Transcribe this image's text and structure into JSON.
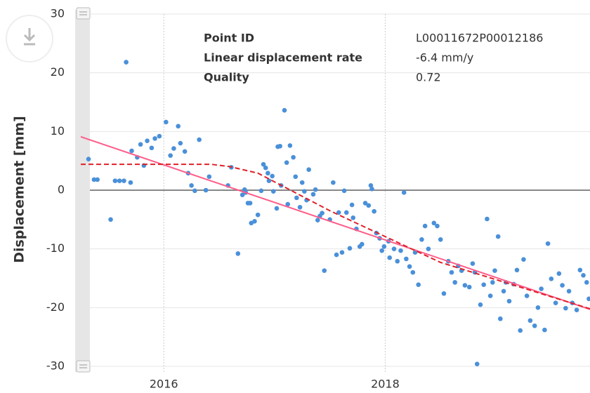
{
  "chart_data": {
    "type": "scatter",
    "ylabel": "Displacement [mm]",
    "xlim": [
      2015.25,
      2019.85
    ],
    "xticks": [
      2016,
      2018
    ],
    "ylim": [
      -30,
      30
    ],
    "yticks": [
      -30,
      -20,
      -10,
      0,
      10,
      20,
      30
    ],
    "grid": true,
    "info": [
      {
        "label": "Point ID",
        "value": "L00011672P00012186"
      },
      {
        "label": "Linear displacement rate",
        "value": "-6.4 mm/y"
      },
      {
        "label": "Quality",
        "value": "0.72"
      }
    ],
    "series": [
      {
        "style": "points",
        "color": "#4a90d9",
        "x": [
          2015.32,
          2015.37,
          2015.4,
          2015.52,
          2015.56,
          2015.6,
          2015.64,
          2015.66,
          2015.7,
          2015.71,
          2015.76,
          2015.79,
          2015.82,
          2015.85,
          2015.89,
          2015.92,
          2015.96,
          2016.02,
          2016.06,
          2016.09,
          2016.13,
          2016.15,
          2016.19,
          2016.22,
          2016.25,
          2016.28,
          2016.32,
          2016.38,
          2016.41,
          2016.58,
          2016.61,
          2016.67,
          2016.71,
          2016.73,
          2016.74,
          2016.76,
          2016.78,
          2016.79,
          2016.82,
          2016.85,
          2016.88,
          2016.9,
          2016.92,
          2016.94,
          2016.95,
          2016.98,
          2016.99,
          2017.02,
          2017.03,
          2017.05,
          2017.06,
          2017.09,
          2017.11,
          2017.12,
          2017.14,
          2017.17,
          2017.19,
          2017.2,
          2017.23,
          2017.25,
          2017.27,
          2017.29,
          2017.31,
          2017.35,
          2017.37,
          2017.39,
          2017.41,
          2017.43,
          2017.45,
          2017.5,
          2017.53,
          2017.56,
          2017.58,
          2017.61,
          2017.63,
          2017.65,
          2017.68,
          2017.7,
          2017.71,
          2017.74,
          2017.77,
          2017.79,
          2017.82,
          2017.85,
          2017.87,
          2017.88,
          2017.9,
          2017.92,
          2017.95,
          2017.97,
          2017.99,
          2018.03,
          2018.04,
          2018.08,
          2018.11,
          2018.14,
          2018.17,
          2018.19,
          2018.22,
          2018.25,
          2018.27,
          2018.3,
          2018.33,
          2018.36,
          2018.39,
          2018.44,
          2018.47,
          2018.5,
          2018.53,
          2018.57,
          2018.6,
          2018.63,
          2018.66,
          2018.69,
          2018.72,
          2018.76,
          2018.79,
          2018.81,
          2018.83,
          2018.86,
          2018.89,
          2018.92,
          2018.95,
          2018.97,
          2018.99,
          2019.02,
          2019.04,
          2019.07,
          2019.09,
          2019.12,
          2019.16,
          2019.19,
          2019.22,
          2019.25,
          2019.28,
          2019.31,
          2019.35,
          2019.38,
          2019.41,
          2019.44,
          2019.47,
          2019.5,
          2019.54,
          2019.57,
          2019.6,
          2019.63,
          2019.66,
          2019.69,
          2019.73,
          2019.76,
          2019.79,
          2019.82,
          2019.84
        ],
        "values": [
          5.3,
          1.8,
          1.8,
          -5.0,
          1.6,
          1.6,
          1.6,
          21.8,
          1.3,
          6.7,
          5.6,
          7.8,
          4.2,
          8.4,
          7.2,
          8.8,
          9.2,
          11.6,
          5.9,
          7.1,
          10.9,
          8.0,
          6.6,
          2.9,
          0.8,
          -0.1,
          8.6,
          0,
          2.3,
          0.8,
          3.9,
          -10.8,
          -0.8,
          0.1,
          -0.4,
          -2.2,
          -2.2,
          -5.6,
          -5.3,
          -4.2,
          -0.1,
          4.4,
          3.8,
          2.9,
          1.6,
          2.4,
          -0.2,
          -3.1,
          7.4,
          7.5,
          0.8,
          13.6,
          4.7,
          -2.4,
          7.6,
          5.6,
          2.3,
          -1.3,
          -2.9,
          1.3,
          -0.2,
          -1.7,
          3.5,
          -0.7,
          0.1,
          -5.1,
          -4.4,
          -3.9,
          -13.7,
          -5.0,
          1.3,
          -11.0,
          -3.8,
          -10.6,
          -0.1,
          -3.8,
          -9.9,
          -2.5,
          -4.7,
          -6.6,
          -9.6,
          -9.2,
          -2.2,
          -2.6,
          0.8,
          0.2,
          -3.6,
          -7.3,
          -8.2,
          -10.3,
          -9.6,
          -8.7,
          -11.5,
          -10.0,
          -12.1,
          -10.3,
          -0.4,
          -11.7,
          -13.0,
          -14.0,
          -10.6,
          -16.1,
          -8.4,
          -6.1,
          -10.0,
          -5.6,
          -6.1,
          -8.4,
          -17.6,
          -12.1,
          -14.0,
          -15.7,
          -12.9,
          -13.7,
          -16.2,
          -16.5,
          -12.5,
          -14.0,
          -29.6,
          -19.5,
          -16.1,
          -4.9,
          -18.0,
          -15.7,
          -13.7,
          -7.9,
          -21.9,
          -17.2,
          -15.7,
          -18.9,
          -16.0,
          -13.6,
          -23.9,
          -11.8,
          -18.0,
          -22.2,
          -23.1,
          -20.0,
          -16.8,
          -23.8,
          -9.1,
          -15.1,
          -19.2,
          -14.2,
          -16.2,
          -20.1,
          -17.2,
          -19.2,
          -20.4,
          -13.6,
          -14.5,
          -15.7,
          -18.5
        ]
      },
      {
        "style": "line",
        "color": "#ff5c8a",
        "x": [
          2015.25,
          2019.85
        ],
        "values": [
          9.1,
          -20.3
        ]
      },
      {
        "style": "dashed",
        "color": "#e0202a",
        "x": [
          2015.25,
          2016.43,
          2016.6,
          2016.85,
          2017.5,
          2018.5,
          2019.85
        ],
        "values": [
          4.4,
          4.4,
          4.0,
          2.9,
          -3.5,
          -12.3,
          -20.2
        ]
      }
    ]
  }
}
